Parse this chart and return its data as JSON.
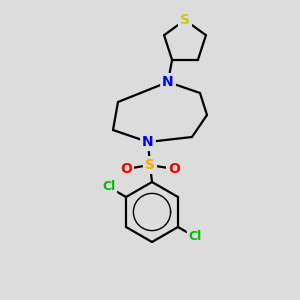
{
  "background_color": "#dcdcdc",
  "bond_color": "#000000",
  "atom_colors": {
    "S_thio": "#cccc00",
    "S_sulfonyl": "#ffaa00",
    "N": "#0000ff",
    "Cl": "#00bb00",
    "O": "#ff0000",
    "C": "#000000"
  },
  "figsize": [
    3.0,
    3.0
  ],
  "dpi": 100,
  "bond_lw": 1.6
}
